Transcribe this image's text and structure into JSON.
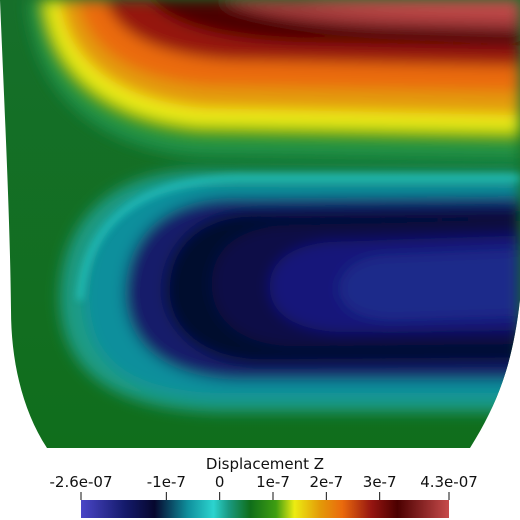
{
  "scalar_bar": {
    "title": "Displacement Z",
    "range": [
      -2.6e-07,
      4.3e-07
    ],
    "ticks": [
      {
        "label": "-2.6e-07",
        "value": -2.6e-07
      },
      {
        "label": "-1e-7",
        "value": -1e-07
      },
      {
        "label": "0",
        "value": 0
      },
      {
        "label": "1e-7",
        "value": 1e-07
      },
      {
        "label": "2e-7",
        "value": 2e-07
      },
      {
        "label": "3e-7",
        "value": 3e-07
      },
      {
        "label": "4.3e-07",
        "value": 4.3e-07
      }
    ],
    "colormap": [
      {
        "t": 0.0,
        "color": "#4a46c7"
      },
      {
        "t": 0.12,
        "color": "#141a6b"
      },
      {
        "t": 0.2,
        "color": "#06072e"
      },
      {
        "t": 0.29,
        "color": "#0f8f9c"
      },
      {
        "t": 0.36,
        "color": "#2cd4cf"
      },
      {
        "t": 0.4,
        "color": "#1a9b84"
      },
      {
        "t": 0.46,
        "color": "#0f6e1a"
      },
      {
        "t": 0.53,
        "color": "#3f9e12"
      },
      {
        "t": 0.58,
        "color": "#ecec12"
      },
      {
        "t": 0.65,
        "color": "#e39a08"
      },
      {
        "t": 0.71,
        "color": "#ea6a0d"
      },
      {
        "t": 0.79,
        "color": "#951511"
      },
      {
        "t": 0.86,
        "color": "#4b0000"
      },
      {
        "t": 1.0,
        "color": "#c74b4b"
      }
    ]
  }
}
